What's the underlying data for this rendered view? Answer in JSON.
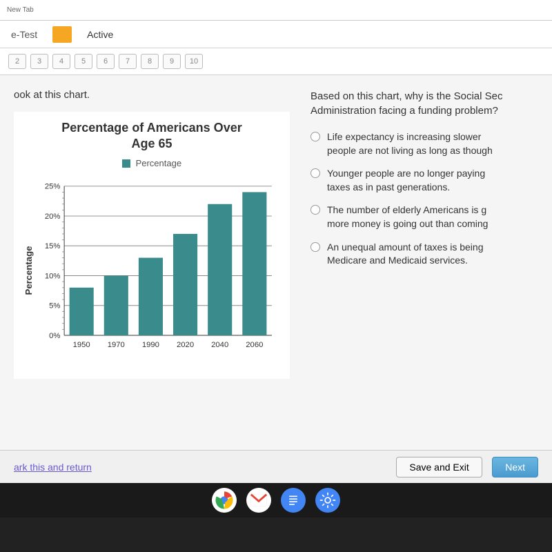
{
  "browser": {
    "title_fragments": "New Tab"
  },
  "quiz": {
    "header_left": "e-Test",
    "header_active": "Active",
    "nav_numbers": [
      "2",
      "3",
      "4",
      "5",
      "6",
      "7",
      "8",
      "9",
      "10"
    ]
  },
  "instruction": "ook at this chart.",
  "chart": {
    "type": "bar",
    "title_line1": "Percentage of Americans Over",
    "title_line2": "Age 65",
    "legend_label": "Percentage",
    "y_label": "Percentage",
    "categories": [
      "1950",
      "1970",
      "1990",
      "2020",
      "2040",
      "2060"
    ],
    "values": [
      8,
      10,
      13,
      17,
      22,
      24
    ],
    "bar_color": "#3a8b8b",
    "ylim": [
      0,
      25
    ],
    "yticks": [
      0,
      5,
      10,
      15,
      20,
      25
    ],
    "ytick_labels": [
      "0%",
      "5%",
      "10%",
      "15%",
      "20%",
      "25%"
    ],
    "grid_color": "#888888",
    "background_color": "#ffffff",
    "bar_width": 0.7,
    "title_fontsize": 18,
    "label_fontsize": 14
  },
  "question": {
    "stem_line1": "Based on this chart, why is the Social Sec",
    "stem_line2": "Administration facing a funding problem?",
    "options": [
      {
        "line1": "Life expectancy is increasing slower",
        "line2": "people are not living as long as though"
      },
      {
        "line1": "Younger people are no longer paying",
        "line2": "taxes as in past generations."
      },
      {
        "line1": "The number of elderly Americans is g",
        "line2": "more money is going out than coming"
      },
      {
        "line1": "An unequal amount of taxes is being",
        "line2": "Medicare and Medicaid services."
      }
    ]
  },
  "footer": {
    "mark_link": "ark this and return",
    "save_exit": "Save and Exit",
    "next": "Next"
  },
  "colors": {
    "accent_orange": "#f5a623",
    "teal": "#3a8b8b",
    "next_btn": "#4a9bd0",
    "link": "#6a5acd"
  }
}
